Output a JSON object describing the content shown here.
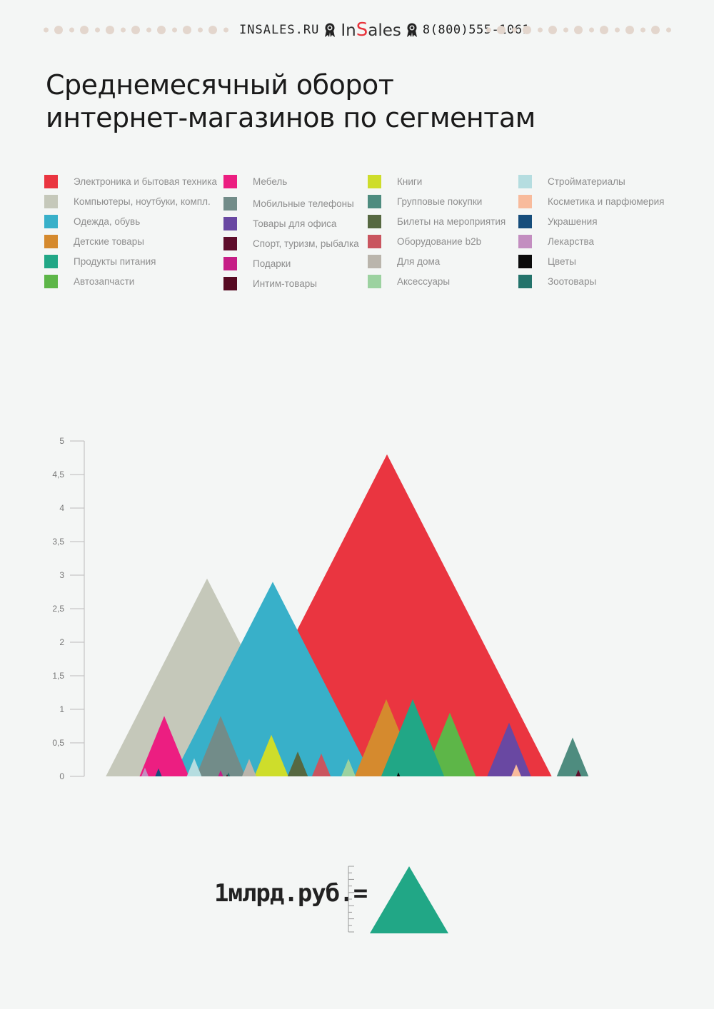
{
  "header": {
    "site": "INSALES.RU",
    "logo_pre": "In",
    "logo_s": "S",
    "logo_post": "ales",
    "phone": "8(800)555-1061",
    "dot_color": "#e3d6cd",
    "medal_icon": "ribbon-medal-icon"
  },
  "title": {
    "line1": "Среднемесячный оборот",
    "line2": "интернет-магазинов по сегментам"
  },
  "legend": [
    {
      "label": "Электроника и бытовая техника",
      "color": "#ea3540"
    },
    {
      "label": "Компьютеры, ноутбуки, компл.",
      "color": "#c5c8ba"
    },
    {
      "label": "Одежда, обувь",
      "color": "#38b0c9"
    },
    {
      "label": "Детские товары",
      "color": "#d58a2e"
    },
    {
      "label": "Продукты питания",
      "color": "#21a786"
    },
    {
      "label": "Автозапчасти",
      "color": "#5db648"
    },
    {
      "label": "Мебель",
      "color": "#ec1e81"
    },
    {
      "label": "Мобильные телефоны",
      "color": "#728c89"
    },
    {
      "label": "Товары для офиса",
      "color": "#6948a2"
    },
    {
      "label": "Спорт, туризм, рыбалка",
      "color": "#5e0d2b"
    },
    {
      "label": "Подарки",
      "color": "#c61e86"
    },
    {
      "label": "Интим-товары",
      "color": "#560a22"
    },
    {
      "label": "Книги",
      "color": "#cedd2b"
    },
    {
      "label": "Групповые покупки",
      "color": "#4e8c7f"
    },
    {
      "label": "Билеты на мероприятия",
      "color": "#566841"
    },
    {
      "label": "Оборудование b2b",
      "color": "#c9555f"
    },
    {
      "label": "Для дома",
      "color": "#bab5ac"
    },
    {
      "label": "Аксессуары",
      "color": "#9cd2a0"
    },
    {
      "label": "Стройматериалы",
      "color": "#b5dde0"
    },
    {
      "label": "Косметика и парфюмерия",
      "color": "#f8bb9c"
    },
    {
      "label": "Украшения",
      "color": "#164d7b"
    },
    {
      "label": "Лекарства",
      "color": "#c38ec0"
    },
    {
      "label": "Цветы",
      "color": "#0a0a0a"
    },
    {
      "label": "Зоотовары",
      "color": "#24736b"
    }
  ],
  "chart_data": {
    "type": "area",
    "shape": "triangle",
    "ylim": [
      0,
      5
    ],
    "y_ticks": [
      "0",
      "0,5",
      "1",
      "1,5",
      "2",
      "2,5",
      "3",
      "3,5",
      "4",
      "4,5",
      "5"
    ],
    "series": [
      {
        "name": "Компьютеры, ноутбуки, компл.",
        "value": 2.95
      },
      {
        "name": "Электроника и бытовая техника",
        "value": 4.8
      },
      {
        "name": "Одежда, обувь",
        "value": 2.9
      },
      {
        "name": "Мебель",
        "value": 0.9
      },
      {
        "name": "Мобильные телефоны",
        "value": 0.9
      },
      {
        "name": "Детские товары",
        "value": 1.15
      },
      {
        "name": "Автозапчасти",
        "value": 0.95
      },
      {
        "name": "Продукты питания",
        "value": 1.15
      },
      {
        "name": "Товары для офиса",
        "value": 0.8
      },
      {
        "name": "Групповые покупки",
        "value": 0.58
      },
      {
        "name": "Книги",
        "value": 0.62
      },
      {
        "name": "Билеты на мероприятия",
        "value": 0.37
      },
      {
        "name": "Оборудование b2b",
        "value": 0.34
      },
      {
        "name": "Аксессуары",
        "value": 0.26
      },
      {
        "name": "Стройматериалы",
        "value": 0.27
      },
      {
        "name": "Для дома",
        "value": 0.26
      },
      {
        "name": "Косметика и парфюмерия",
        "value": 0.18
      },
      {
        "name": "Лекарства",
        "value": 0.13
      },
      {
        "name": "Украшения",
        "value": 0.12
      },
      {
        "name": "Подарки",
        "value": 0.09
      },
      {
        "name": "Зоотовары",
        "value": 0.06
      },
      {
        "name": "Спорт, туризм, рыбалка",
        "value": 0.1
      },
      {
        "name": "Цветы",
        "value": 0.06
      },
      {
        "name": "Интим-товары",
        "value": 0.03
      }
    ]
  },
  "scale": {
    "text": "1млрд.руб.=",
    "value": 1,
    "color": "#21a786"
  }
}
